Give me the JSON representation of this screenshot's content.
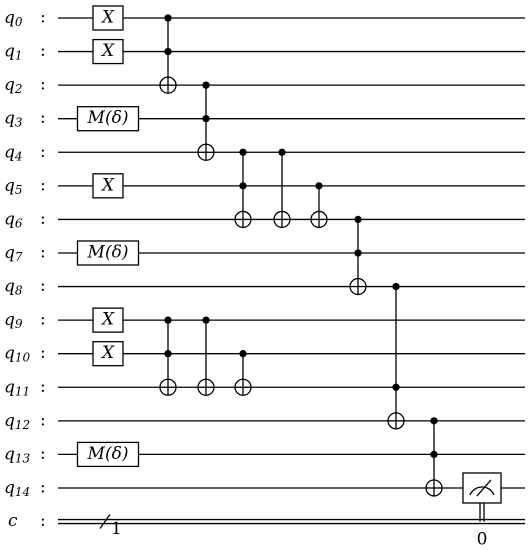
{
  "qubits": [
    {
      "name": "q",
      "index": "0"
    },
    {
      "name": "q",
      "index": "1"
    },
    {
      "name": "q",
      "index": "2"
    },
    {
      "name": "q",
      "index": "3"
    },
    {
      "name": "q",
      "index": "4"
    },
    {
      "name": "q",
      "index": "5"
    },
    {
      "name": "q",
      "index": "6"
    },
    {
      "name": "q",
      "index": "7"
    },
    {
      "name": "q",
      "index": "8"
    },
    {
      "name": "q",
      "index": "9"
    },
    {
      "name": "q",
      "index": "10"
    },
    {
      "name": "q",
      "index": "11"
    },
    {
      "name": "q",
      "index": "12"
    },
    {
      "name": "q",
      "index": "13"
    },
    {
      "name": "q",
      "index": "14"
    }
  ],
  "separator": ":",
  "classical": {
    "name": "c",
    "width": "1"
  },
  "gates": [
    {
      "label": "X"
    },
    {
      "label": "X"
    },
    {
      "label": "M(δ)"
    },
    {
      "label": "X"
    },
    {
      "label": "M(δ)"
    },
    {
      "label": "X"
    },
    {
      "label": "X"
    },
    {
      "label": "M(δ)"
    }
  ],
  "measure": {
    "bit": "0"
  }
}
